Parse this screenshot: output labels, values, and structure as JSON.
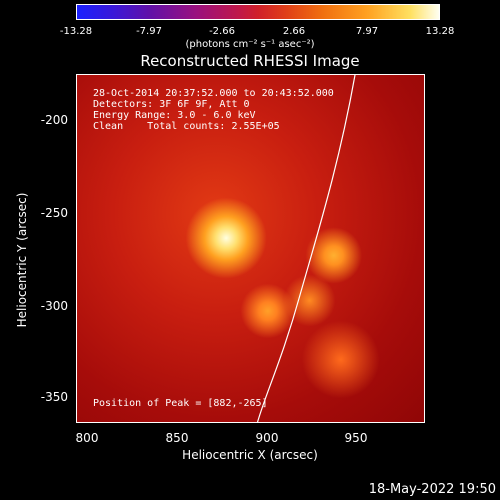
{
  "colorbar": {
    "ticks": [
      "-13.28",
      "-7.97",
      "-2.66",
      "2.66",
      "7.97",
      "13.28"
    ],
    "units": "(photons cm⁻² s⁻¹ asec⁻²)"
  },
  "title": "Reconstructed RHESSI Image",
  "info": {
    "time": "28-Oct-2014 20:37:52.000 to 20:43:52.000",
    "detectors": "Detectors: 3F 6F 9F, Att 0",
    "energy": "Energy Range: 3.0 - 6.0 keV",
    "clean": "Clean    Total counts: 2.55E+05",
    "peak": "Position of Peak = [882,-265]"
  },
  "axes": {
    "xlabel": "Heliocentric X (arcsec)",
    "ylabel": "Heliocentric Y (arcsec)",
    "xticks": [
      "800",
      "850",
      "900",
      "950"
    ],
    "yticks": [
      "-200",
      "-250",
      "-300",
      "-350"
    ]
  },
  "timestamp": "18-May-2022 19:50"
}
